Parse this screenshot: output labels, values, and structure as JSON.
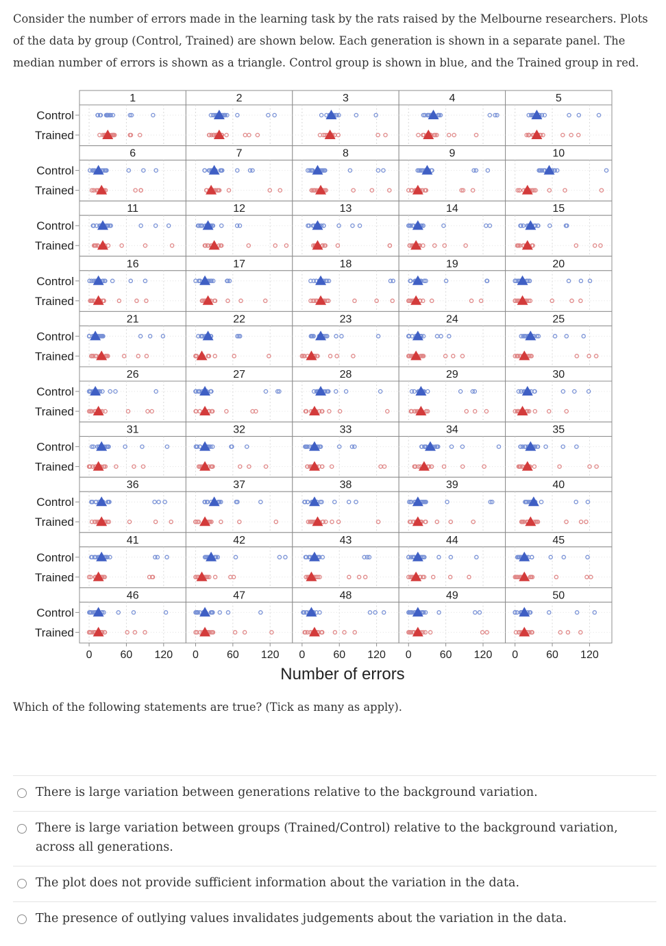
{
  "intro": {
    "text": "Consider the number of errors made in the learning task by the rats raised by the Melbourne researchers. Plots of the data by group (Control, Trained) are shown below.  Each generation is shown in a separate panel.  The median number of errors is shown as a triangle. Control group is shown in blue, and the Trained group in red."
  },
  "question": "Which of the following statements are true? (Tick as many as apply).",
  "options": [
    {
      "label": "There is large variation between generations relative to the background variation.",
      "selected": false
    },
    {
      "label": "There is large variation between groups (Trained/Control) relative to the background variation, across all generations.",
      "selected": false
    },
    {
      "label": "The plot does not provide sufficient information about the variation in the data.",
      "selected": false
    },
    {
      "label": "The presence of outlying values invalidates judgements about the variation in the data.",
      "selected": false
    }
  ],
  "chart_data": {
    "type": "scatter",
    "title": "",
    "xlabel": "Number of errors",
    "ylabel": "",
    "xlim": [
      -10,
      150
    ],
    "x_ticks": [
      0,
      60,
      120
    ],
    "group_labels": [
      "Control",
      "Trained"
    ],
    "group_colors": {
      "Control": "#3f5fc4",
      "Trained": "#d33b3b"
    },
    "point_colors": {
      "Control": "#7891d6",
      "Trained": "#e08787"
    },
    "panel_layout": {
      "rows": 10,
      "cols": 5
    },
    "median_marker": "triangle",
    "panels": [
      {
        "generation": "1",
        "control_median": null,
        "trained_median": 30
      },
      {
        "generation": "2",
        "control_median": 38,
        "trained_median": 38
      },
      {
        "generation": "3",
        "control_median": 47,
        "trained_median": 45
      },
      {
        "generation": "4",
        "control_median": 40,
        "trained_median": 32
      },
      {
        "generation": "5",
        "control_median": 35,
        "trained_median": 35
      },
      {
        "generation": "6",
        "control_median": 15,
        "trained_median": 20
      },
      {
        "generation": "7",
        "control_median": 30,
        "trained_median": 25
      },
      {
        "generation": "8",
        "control_median": 25,
        "trained_median": 30
      },
      {
        "generation": "9",
        "control_median": 30,
        "trained_median": 15
      },
      {
        "generation": "10",
        "control_median": 55,
        "trained_median": 20
      },
      {
        "generation": "11",
        "control_median": 22,
        "trained_median": 22
      },
      {
        "generation": "12",
        "control_median": 20,
        "trained_median": 30
      },
      {
        "generation": "13",
        "control_median": 25,
        "trained_median": 25
      },
      {
        "generation": "14",
        "control_median": 15,
        "trained_median": 12
      },
      {
        "generation": "15",
        "control_median": 25,
        "trained_median": 20
      },
      {
        "generation": "16",
        "control_median": 15,
        "trained_median": 15
      },
      {
        "generation": "17",
        "control_median": 15,
        "trained_median": 20
      },
      {
        "generation": "18",
        "control_median": 30,
        "trained_median": 30
      },
      {
        "generation": "19",
        "control_median": 15,
        "trained_median": 12
      },
      {
        "generation": "20",
        "control_median": 12,
        "trained_median": 12
      },
      {
        "generation": "21",
        "control_median": 10,
        "trained_median": 20
      },
      {
        "generation": "22",
        "control_median": 20,
        "trained_median": 10
      },
      {
        "generation": "23",
        "control_median": 30,
        "trained_median": 15
      },
      {
        "generation": "24",
        "control_median": 15,
        "trained_median": 12
      },
      {
        "generation": "25",
        "control_median": 25,
        "trained_median": 15
      },
      {
        "generation": "26",
        "control_median": 10,
        "trained_median": 15
      },
      {
        "generation": "27",
        "control_median": 15,
        "trained_median": 15
      },
      {
        "generation": "28",
        "control_median": 30,
        "trained_median": 20
      },
      {
        "generation": "29",
        "control_median": 20,
        "trained_median": 20
      },
      {
        "generation": "30",
        "control_median": 20,
        "trained_median": 12
      },
      {
        "generation": "31",
        "control_median": 20,
        "trained_median": 15
      },
      {
        "generation": "32",
        "control_median": 15,
        "trained_median": 15
      },
      {
        "generation": "33",
        "control_median": 20,
        "trained_median": 20
      },
      {
        "generation": "34",
        "control_median": 35,
        "trained_median": 25
      },
      {
        "generation": "35",
        "control_median": 25,
        "trained_median": 20
      },
      {
        "generation": "36",
        "control_median": 20,
        "trained_median": 20
      },
      {
        "generation": "37",
        "control_median": 30,
        "trained_median": 15
      },
      {
        "generation": "38",
        "control_median": 20,
        "trained_median": 25
      },
      {
        "generation": "39",
        "control_median": 15,
        "trained_median": 15
      },
      {
        "generation": "40",
        "control_median": 30,
        "trained_median": 25
      },
      {
        "generation": "41",
        "control_median": 20,
        "trained_median": 15
      },
      {
        "generation": "42",
        "control_median": 25,
        "trained_median": 10
      },
      {
        "generation": "43",
        "control_median": 20,
        "trained_median": 15
      },
      {
        "generation": "44",
        "control_median": 15,
        "trained_median": 12
      },
      {
        "generation": "45",
        "control_median": 15,
        "trained_median": 15
      },
      {
        "generation": "46",
        "control_median": 15,
        "trained_median": 15
      },
      {
        "generation": "47",
        "control_median": 15,
        "trained_median": 15
      },
      {
        "generation": "48",
        "control_median": 15,
        "trained_median": 20
      },
      {
        "generation": "49",
        "control_median": 15,
        "trained_median": 15
      },
      {
        "generation": "50",
        "control_median": 15,
        "trained_median": 15
      }
    ]
  }
}
